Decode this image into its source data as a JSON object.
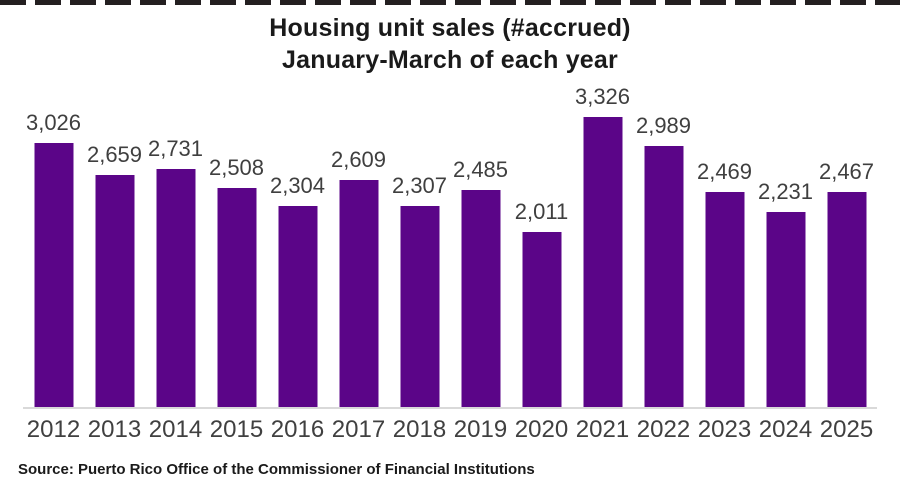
{
  "page": {
    "source": "Source: Puerto Rico Office of the Commissioner of Financial Institutions"
  },
  "chart_data": {
    "type": "bar",
    "title": "Housing unit sales (#accrued) January-March of each year",
    "title_line1": "Housing unit sales (#accrued)",
    "title_line2": "January-March of each year",
    "categories": [
      "2012",
      "2013",
      "2014",
      "2015",
      "2016",
      "2017",
      "2018",
      "2019",
      "2020",
      "2021",
      "2022",
      "2023",
      "2024",
      "2025"
    ],
    "values": [
      3026,
      2659,
      2731,
      2508,
      2304,
      2609,
      2307,
      2485,
      2011,
      3326,
      2989,
      2469,
      2231,
      2467
    ],
    "value_labels": [
      "3,026",
      "2,659",
      "2,731",
      "2,508",
      "2,304",
      "2,609",
      "2,307",
      "2,485",
      "2,011",
      "3,326",
      "2,989",
      "2,469",
      "2,231",
      "2,467"
    ],
    "xlabel": "",
    "ylabel": "",
    "ylim": [
      0,
      3500
    ],
    "grid": false,
    "legend": "none",
    "bar_color": "#5B0588",
    "value_label_color": "#3f3f3f",
    "tick_label_color": "#404040",
    "axis_line_color": "#d9d9d9"
  }
}
